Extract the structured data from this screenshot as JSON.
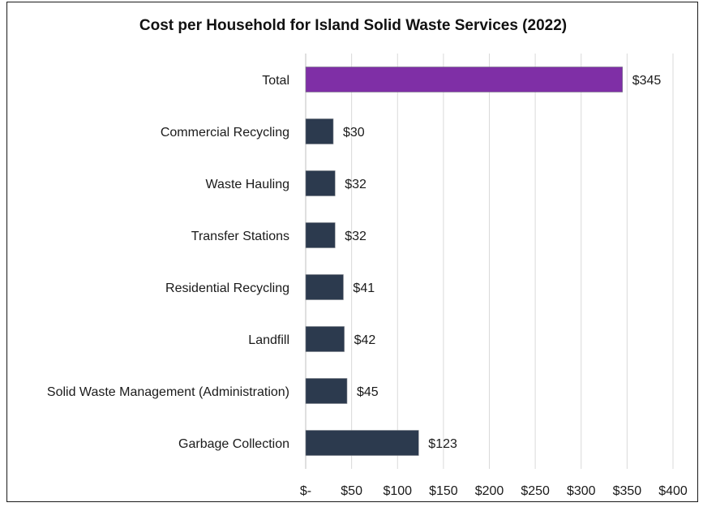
{
  "chart_data": {
    "type": "bar",
    "orientation": "horizontal",
    "title": "Cost per Household for Island Solid Waste Services (2022)",
    "xlabel": "",
    "ylabel": "",
    "categories": [
      "Total",
      "Commercial Recycling",
      "Waste Hauling",
      "Transfer Stations",
      "Residential Recycling",
      "Landfill",
      "Solid Waste Management (Administration)",
      "Garbage Collection"
    ],
    "values": [
      345,
      30,
      32,
      32,
      41,
      42,
      45,
      123
    ],
    "value_labels": [
      "$345",
      "$30",
      "$32",
      "$32",
      "$41",
      "$42",
      "$45",
      "$123"
    ],
    "bar_colors": [
      "#7f2fa6",
      "#2c3a4e",
      "#2c3a4e",
      "#2c3a4e",
      "#2c3a4e",
      "#2c3a4e",
      "#2c3a4e",
      "#2c3a4e"
    ],
    "xlim": [
      0,
      400
    ],
    "x_ticks": [
      0,
      50,
      100,
      150,
      200,
      250,
      300,
      350,
      400
    ],
    "x_tick_labels": [
      "$-",
      "$50",
      "$100",
      "$150",
      "$200",
      "$250",
      "$300",
      "$350",
      "$400"
    ],
    "grid": "vertical",
    "legend": "none"
  }
}
